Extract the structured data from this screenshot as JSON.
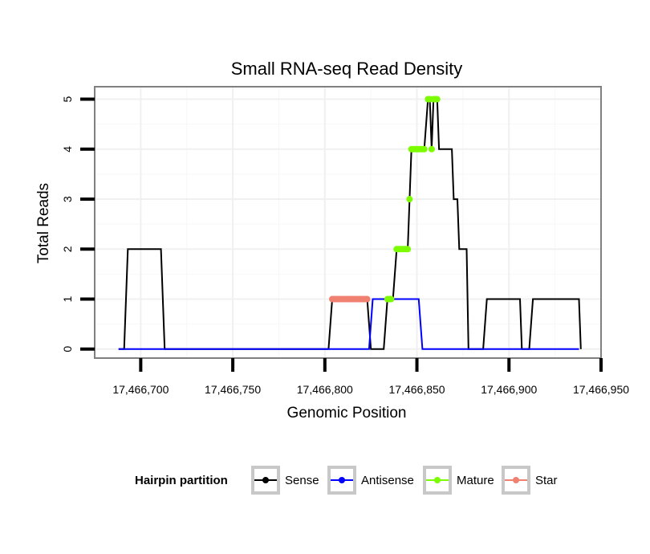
{
  "chart_data": {
    "type": "line",
    "title": "Small RNA-seq Read Density",
    "xlabel": "Genomic Position",
    "ylabel": "Total Reads",
    "xlim": [
      17466675,
      17466950
    ],
    "ylim": [
      -0.18,
      5.25
    ],
    "x_ticks": [
      17466700,
      17466750,
      17466800,
      17466850,
      17466900,
      17466950
    ],
    "x_tick_labels": [
      "17,466,700",
      "17,466,750",
      "17,466,800",
      "17,466,850",
      "17,466,900",
      "17,466,950"
    ],
    "y_ticks": [
      0,
      1,
      2,
      3,
      4,
      5
    ],
    "y_tick_labels": [
      "0",
      "1",
      "2",
      "3",
      "4",
      "5"
    ],
    "grid": true,
    "legend": {
      "title": "Hairpin partition",
      "position": "bottom",
      "entries": [
        "Sense",
        "Antisense",
        "Mature",
        "Star"
      ]
    },
    "series": [
      {
        "name": "Sense",
        "color": "#000000",
        "kind": "line",
        "points": [
          [
            17466688,
            0
          ],
          [
            17466691,
            0
          ],
          [
            17466693,
            2
          ],
          [
            17466711,
            2
          ],
          [
            17466713,
            0
          ],
          [
            17466802,
            0
          ],
          [
            17466804,
            1
          ],
          [
            17466823,
            1
          ],
          [
            17466825,
            0
          ],
          [
            17466832,
            0
          ],
          [
            17466834,
            1
          ],
          [
            17466837,
            1
          ],
          [
            17466839,
            2
          ],
          [
            17466845,
            2
          ],
          [
            17466846,
            3
          ],
          [
            17466847,
            4
          ],
          [
            17466854,
            4
          ],
          [
            17466856,
            5
          ],
          [
            17466857,
            5
          ],
          [
            17466858,
            4
          ],
          [
            17466859,
            5
          ],
          [
            17466861,
            5
          ],
          [
            17466862,
            4
          ],
          [
            17466869,
            4
          ],
          [
            17466870,
            3
          ],
          [
            17466872,
            3
          ],
          [
            17466873,
            2
          ],
          [
            17466877,
            2
          ],
          [
            17466878,
            0
          ],
          [
            17466886,
            0
          ],
          [
            17466888,
            1
          ],
          [
            17466906,
            1
          ],
          [
            17466907,
            0
          ],
          [
            17466911,
            0
          ],
          [
            17466913,
            1
          ],
          [
            17466938,
            1
          ],
          [
            17466939,
            0
          ]
        ]
      },
      {
        "name": "Antisense",
        "color": "#0000ff",
        "kind": "line",
        "points": [
          [
            17466688,
            0
          ],
          [
            17466824,
            0
          ],
          [
            17466826,
            1
          ],
          [
            17466851,
            1
          ],
          [
            17466853,
            0
          ],
          [
            17466938,
            0
          ]
        ]
      },
      {
        "name": "Mature",
        "color": "#7cfc00",
        "kind": "points",
        "points": [
          [
            17466834,
            1
          ],
          [
            17466835,
            1
          ],
          [
            17466836,
            1
          ],
          [
            17466839,
            2
          ],
          [
            17466840,
            2
          ],
          [
            17466841,
            2
          ],
          [
            17466842,
            2
          ],
          [
            17466843,
            2
          ],
          [
            17466844,
            2
          ],
          [
            17466845,
            2
          ],
          [
            17466846,
            3
          ],
          [
            17466847,
            4
          ],
          [
            17466848,
            4
          ],
          [
            17466849,
            4
          ],
          [
            17466850,
            4
          ],
          [
            17466851,
            4
          ],
          [
            17466852,
            4
          ],
          [
            17466853,
            4
          ],
          [
            17466854,
            4
          ],
          [
            17466856,
            5
          ],
          [
            17466857,
            5
          ],
          [
            17466858,
            4
          ],
          [
            17466859,
            5
          ],
          [
            17466860,
            5
          ],
          [
            17466861,
            5
          ]
        ]
      },
      {
        "name": "Star",
        "color": "#f08070",
        "kind": "points",
        "points": [
          [
            17466804,
            1
          ],
          [
            17466805,
            1
          ],
          [
            17466806,
            1
          ],
          [
            17466807,
            1
          ],
          [
            17466808,
            1
          ],
          [
            17466809,
            1
          ],
          [
            17466810,
            1
          ],
          [
            17466811,
            1
          ],
          [
            17466812,
            1
          ],
          [
            17466813,
            1
          ],
          [
            17466814,
            1
          ],
          [
            17466815,
            1
          ],
          [
            17466816,
            1
          ],
          [
            17466817,
            1
          ],
          [
            17466818,
            1
          ],
          [
            17466819,
            1
          ],
          [
            17466820,
            1
          ],
          [
            17466821,
            1
          ],
          [
            17466822,
            1
          ],
          [
            17466823,
            1
          ]
        ]
      }
    ]
  }
}
